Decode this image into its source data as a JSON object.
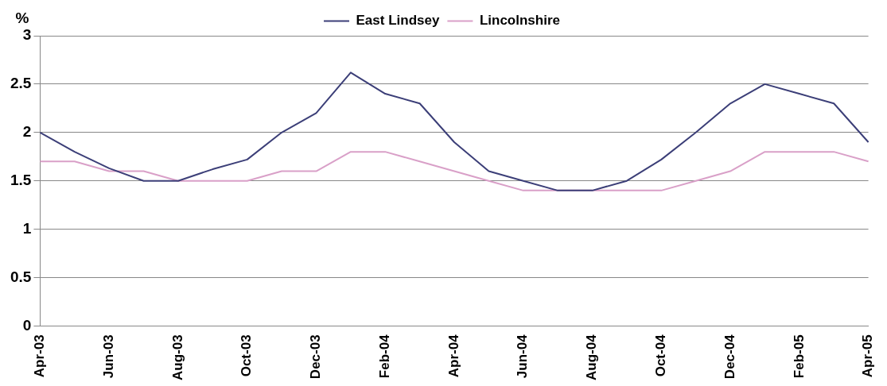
{
  "chart_data": {
    "type": "line",
    "ylabel": "%",
    "categories": [
      "Apr-03",
      null,
      "Jun-03",
      null,
      "Aug-03",
      null,
      "Oct-03",
      null,
      "Dec-03",
      null,
      "Feb-04",
      null,
      "Apr-04",
      null,
      "Jun-04",
      null,
      "Aug-04",
      null,
      "Oct-04",
      null,
      "Dec-04",
      null,
      "Feb-05",
      null,
      "Apr-05"
    ],
    "series": [
      {
        "name": "East Lindsey",
        "color": "#3c3f78",
        "values": [
          2.0,
          1.8,
          1.63,
          1.5,
          1.5,
          1.62,
          1.72,
          2.0,
          2.2,
          2.62,
          2.4,
          2.3,
          1.9,
          1.6,
          1.5,
          1.4,
          1.4,
          1.5,
          1.72,
          2.0,
          2.3,
          2.5,
          2.4,
          2.3,
          1.9
        ]
      },
      {
        "name": "Lincolnshire",
        "color": "#d9a0c8",
        "values": [
          1.7,
          1.7,
          1.6,
          1.6,
          1.5,
          1.5,
          1.5,
          1.6,
          1.6,
          1.8,
          1.8,
          1.7,
          1.6,
          1.5,
          1.4,
          1.4,
          1.4,
          1.4,
          1.4,
          1.5,
          1.6,
          1.8,
          1.8,
          1.8,
          1.7
        ]
      }
    ],
    "ylim": [
      0,
      3
    ],
    "yticks": [
      0,
      0.5,
      1,
      1.5,
      2,
      2.5,
      3
    ],
    "grid": "y",
    "legend": "top",
    "marker": "none",
    "line_style": "solid"
  }
}
